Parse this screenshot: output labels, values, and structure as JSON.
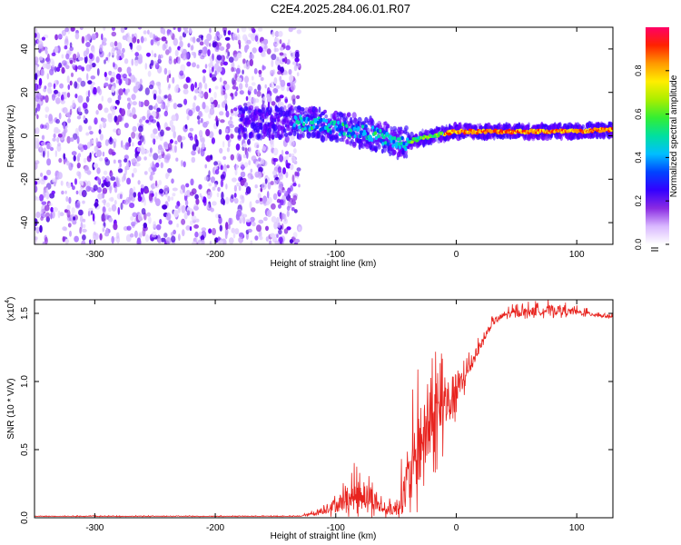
{
  "title": "C2E4.2025.284.06.01.R07",
  "chart_data": [
    {
      "type": "heatmap",
      "name": "spectrogram",
      "title": "C2E4.2025.284.06.01.R07",
      "xlabel": "Height of straight line (km)",
      "ylabel": "Frequency (Hz)",
      "xlim": [
        -350,
        130
      ],
      "ylim": [
        -50,
        50
      ],
      "xticks": [
        -300,
        -200,
        -100,
        0,
        100
      ],
      "yticks": [
        -40,
        -20,
        0,
        20,
        40
      ],
      "grid": false,
      "noise_region_x": [
        -350,
        -130
      ],
      "signal_track": {
        "x": [
          -180,
          -150,
          -130,
          -110,
          -90,
          -70,
          -55,
          -45,
          -35,
          -20,
          -10,
          0,
          20,
          60,
          100,
          130
        ],
        "freq": [
          6,
          6,
          6,
          5,
          3,
          1,
          -2,
          -4,
          -2,
          0,
          1,
          2,
          2,
          2,
          2,
          3
        ]
      },
      "colorbar": {
        "label": "Normalized spectral amplitude",
        "range": [
          0,
          1
        ],
        "ticks": [
          "0.0",
          "0.2",
          "0.4",
          "0.6",
          "0.8"
        ],
        "colors": [
          "#ffffff",
          "#d9b8ff",
          "#8a2be2",
          "#3300ff",
          "#0044ff",
          "#00bfff",
          "#00e0a0",
          "#33ee33",
          "#aaee00",
          "#ffee00",
          "#ff9900",
          "#ff2200",
          "#ff0066"
        ]
      }
    },
    {
      "type": "line",
      "name": "snr",
      "xlabel": "Height of straight line (km)",
      "ylabel": "SNR (10 * V/V)",
      "multiplier_label": "(x10",
      "multiplier_exp": "4",
      "multiplier_close": ")",
      "xlim": [
        -350,
        130
      ],
      "ylim": [
        0,
        1.6
      ],
      "xticks": [
        -300,
        -200,
        -100,
        0,
        100
      ],
      "yticks": [
        "0.0",
        "0.5",
        "1.0",
        "1.5"
      ],
      "line_color": "#e8231e",
      "envelope": {
        "x": [
          -350,
          -130,
          -115,
          -100,
          -90,
          -80,
          -70,
          -60,
          -50,
          -40,
          -30,
          -20,
          -10,
          0,
          10,
          20,
          30,
          40,
          60,
          80,
          100,
          130
        ],
        "base": [
          0.01,
          0.01,
          0.03,
          0.07,
          0.1,
          0.13,
          0.1,
          0.04,
          0.04,
          0.16,
          0.4,
          0.58,
          0.72,
          0.85,
          1.05,
          1.25,
          1.42,
          1.48,
          1.5,
          1.51,
          1.5,
          1.47
        ],
        "spread": [
          0.004,
          0.004,
          0.03,
          0.1,
          0.15,
          0.22,
          0.18,
          0.06,
          0.08,
          0.4,
          0.55,
          0.5,
          0.42,
          0.3,
          0.12,
          0.06,
          0.04,
          0.05,
          0.06,
          0.07,
          0.04,
          0.02
        ]
      }
    }
  ]
}
